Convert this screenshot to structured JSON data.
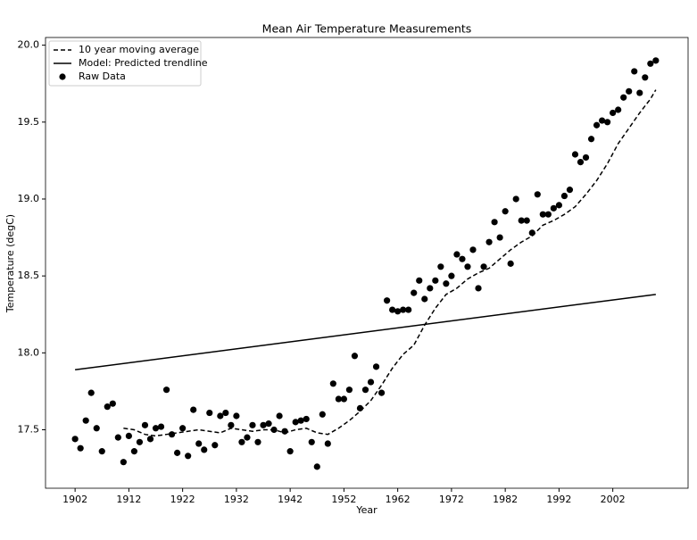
{
  "chart_data": {
    "type": "line",
    "title": "Mean Air Temperature Measurements",
    "x_label": "Year",
    "y_label": "Temperature (degC)",
    "xlim": [
      1896.5,
      2016
    ],
    "ylim": [
      17.12,
      20.05
    ],
    "xticks": [
      1902,
      1912,
      1922,
      1932,
      1942,
      1952,
      1962,
      1972,
      1982,
      1992,
      2002
    ],
    "yticks": [
      {
        "value": 17.5,
        "label": "17.5"
      },
      {
        "value": 18.0,
        "label": "18.0"
      },
      {
        "value": 18.5,
        "label": "18.5"
      },
      {
        "value": 19.0,
        "label": "19.0"
      },
      {
        "value": 19.5,
        "label": "19.5"
      },
      {
        "value": 20.0,
        "label": "20.0"
      }
    ],
    "legend": "upper left",
    "grid": false,
    "series": [
      {
        "name": "10 year moving average",
        "color": "#000000",
        "style": "dashed",
        "x": [
          1911,
          1913,
          1915,
          1917,
          1919,
          1921,
          1923,
          1925,
          1927,
          1929,
          1931,
          1933,
          1935,
          1937,
          1939,
          1941,
          1943,
          1945,
          1947,
          1949,
          1951,
          1953,
          1955,
          1957,
          1959,
          1961,
          1963,
          1965,
          1967,
          1969,
          1971,
          1973,
          1975,
          1977,
          1979,
          1981,
          1983,
          1985,
          1987,
          1989,
          1991,
          1993,
          1995,
          1997,
          1999,
          2001,
          2003,
          2005,
          2007,
          2009,
          2010
        ],
        "values": [
          17.51,
          17.5,
          17.47,
          17.46,
          17.47,
          17.48,
          17.49,
          17.5,
          17.49,
          17.48,
          17.51,
          17.5,
          17.49,
          17.5,
          17.5,
          17.48,
          17.5,
          17.51,
          17.48,
          17.47,
          17.51,
          17.56,
          17.62,
          17.69,
          17.79,
          17.9,
          17.99,
          18.05,
          18.18,
          18.29,
          18.38,
          18.42,
          18.48,
          18.52,
          18.55,
          18.61,
          18.67,
          18.72,
          18.76,
          18.83,
          18.86,
          18.9,
          18.95,
          19.03,
          19.12,
          19.23,
          19.36,
          19.46,
          19.56,
          19.65,
          19.71
        ]
      },
      {
        "name": "Model: Predicted trendline",
        "color": "#000000",
        "style": "solid",
        "x": [
          1902,
          2010
        ],
        "values": [
          17.89,
          18.38
        ]
      },
      {
        "name": "Raw Data",
        "color": "#000000",
        "style": "scatter",
        "x": [
          1902,
          1903,
          1904,
          1905,
          1906,
          1907,
          1908,
          1909,
          1910,
          1911,
          1912,
          1913,
          1914,
          1915,
          1916,
          1917,
          1918,
          1919,
          1920,
          1921,
          1922,
          1923,
          1924,
          1925,
          1926,
          1927,
          1928,
          1929,
          1930,
          1931,
          1932,
          1933,
          1934,
          1935,
          1936,
          1937,
          1938,
          1939,
          1940,
          1941,
          1942,
          1943,
          1944,
          1945,
          1946,
          1947,
          1948,
          1949,
          1950,
          1951,
          1952,
          1953,
          1954,
          1955,
          1956,
          1957,
          1958,
          1959,
          1960,
          1961,
          1962,
          1963,
          1964,
          1965,
          1966,
          1967,
          1968,
          1969,
          1970,
          1971,
          1972,
          1973,
          1974,
          1975,
          1976,
          1977,
          1978,
          1979,
          1980,
          1981,
          1982,
          1983,
          1984,
          1985,
          1986,
          1987,
          1988,
          1989,
          1990,
          1991,
          1992,
          1993,
          1994,
          1995,
          1996,
          1997,
          1998,
          1999,
          2000,
          2001,
          2002,
          2003,
          2004,
          2005,
          2006,
          2007,
          2008,
          2009,
          2010
        ],
        "values": [
          17.44,
          17.38,
          17.56,
          17.74,
          17.51,
          17.36,
          17.65,
          17.67,
          17.45,
          17.29,
          17.46,
          17.36,
          17.42,
          17.53,
          17.44,
          17.51,
          17.52,
          17.76,
          17.47,
          17.35,
          17.51,
          17.33,
          17.63,
          17.41,
          17.37,
          17.61,
          17.4,
          17.59,
          17.61,
          17.53,
          17.59,
          17.42,
          17.45,
          17.53,
          17.42,
          17.53,
          17.54,
          17.5,
          17.59,
          17.49,
          17.36,
          17.55,
          17.56,
          17.57,
          17.42,
          17.26,
          17.6,
          17.41,
          17.8,
          17.7,
          17.7,
          17.76,
          17.98,
          17.64,
          17.76,
          17.81,
          17.91,
          17.74,
          18.34,
          18.28,
          18.27,
          18.28,
          18.28,
          18.39,
          18.47,
          18.35,
          18.42,
          18.47,
          18.56,
          18.45,
          18.5,
          18.64,
          18.61,
          18.56,
          18.67,
          18.42,
          18.56,
          18.72,
          18.85,
          18.75,
          18.92,
          18.58,
          19.0,
          18.86,
          18.86,
          18.78,
          19.03,
          18.9,
          18.9,
          18.94,
          18.96,
          19.02,
          19.06,
          19.29,
          19.24,
          19.27,
          19.39,
          19.48,
          19.51,
          19.5,
          19.56,
          19.58,
          19.66,
          19.7,
          19.83,
          19.69,
          19.79,
          19.88,
          19.9
        ]
      }
    ]
  }
}
